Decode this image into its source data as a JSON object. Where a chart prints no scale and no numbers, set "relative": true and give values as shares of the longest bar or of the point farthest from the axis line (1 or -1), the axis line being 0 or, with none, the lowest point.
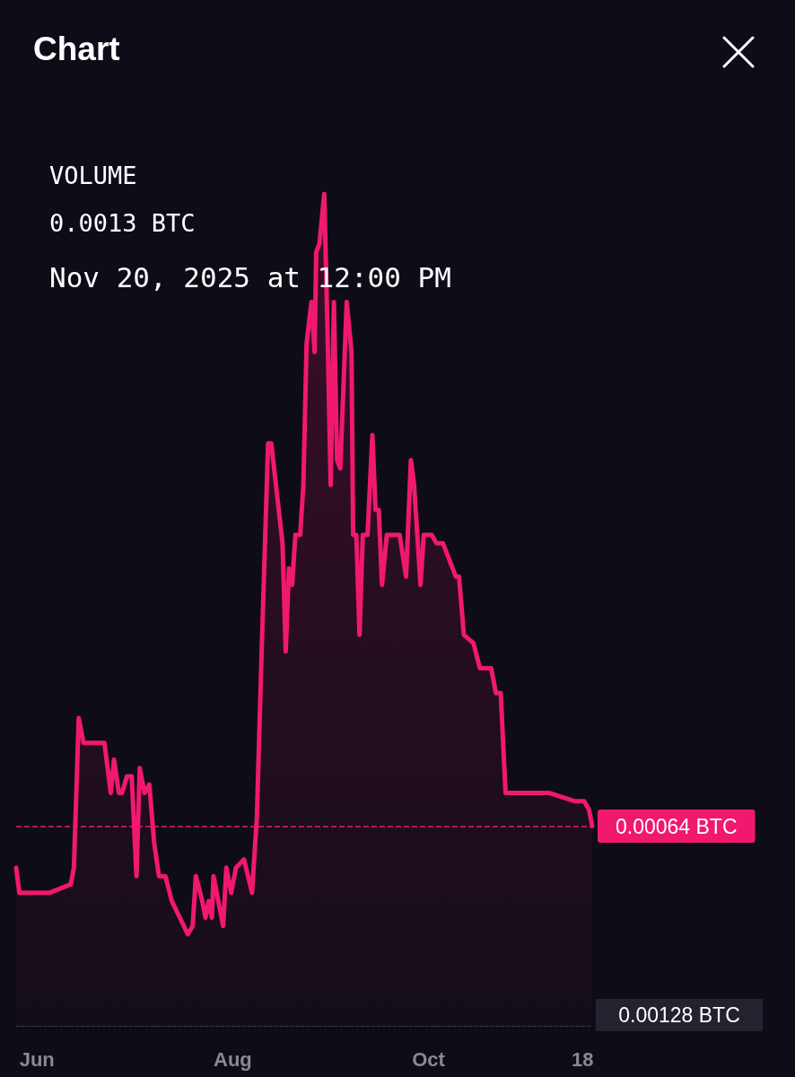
{
  "chart_data": {
    "type": "area",
    "title": "Chart",
    "relative": true,
    "color": "#f0196e",
    "line_style": "solid",
    "marker": "none",
    "grid": false,
    "annotations": [
      "VOLUME",
      "0.0013 BTC",
      "Nov 20, 2025 at 12:00 PM",
      "0.00128 BTC"
    ],
    "xlim": [
      "2025-05-25T12:00",
      "2025-11-21"
    ],
    "xticks": [
      {
        "value": "2025-06-01",
        "label": "Jun"
      },
      {
        "value": "2025-08-01",
        "label": "Aug"
      },
      {
        "value": "2025-10-01",
        "label": "Oct"
      },
      {
        "value": "2025-11-18",
        "label": "18"
      }
    ],
    "ref_lines": [
      {
        "axis": "y",
        "value": 0.24,
        "label": "0.00064 BTC",
        "color": "#f0196e",
        "line_style": "dashed"
      }
    ],
    "x": [
      "2025-05-25T12:00",
      "2025-05-26T12:00",
      "2025-06-05",
      "2025-06-11T12:00",
      "2025-06-12T12:00",
      "2025-06-14",
      "2025-06-15T12:00",
      "2025-06-22",
      "2025-06-24",
      "2025-06-25",
      "2025-06-26T12:00",
      "2025-06-27T12:00",
      "2025-06-29",
      "2025-06-30T12:00",
      "2025-07-02",
      "2025-07-03",
      "2025-07-04T12:00",
      "2025-07-06",
      "2025-07-07T12:00",
      "2025-07-09",
      "2025-07-11",
      "2025-07-13",
      "2025-07-18",
      "2025-07-19T12:00",
      "2025-07-20T12:00",
      "2025-07-22T12:00",
      "2025-07-23T12:00",
      "2025-07-24T12:00",
      "2025-07-25T12:00",
      "2025-07-26",
      "2025-07-29",
      "2025-07-30",
      "2025-07-31T12:00",
      "2025-08-02",
      "2025-08-04T12:00",
      "2025-08-07",
      "2025-08-08T12:00",
      "2025-08-10",
      "2025-08-12",
      "2025-08-13",
      "2025-08-16T12:00",
      "2025-08-17T12:00",
      "2025-08-18T12:00",
      "2025-08-19T12:00",
      "2025-08-20T12:00",
      "2025-08-22",
      "2025-08-23",
      "2025-08-24",
      "2025-08-25T12:00",
      "2025-08-26T12:00",
      "2025-08-27",
      "2025-08-28",
      "2025-08-29T12:00",
      "2025-08-30T12:00",
      "2025-08-31T12:00",
      "2025-09-01T12:00",
      "2025-09-02T12:00",
      "2025-09-03T12:00",
      "2025-09-05T12:00",
      "2025-09-07",
      "2025-09-07T12:00",
      "2025-09-08T12:00",
      "2025-09-09T12:00",
      "2025-09-10T12:00",
      "2025-09-12",
      "2025-09-13T12:00",
      "2025-09-14T12:00",
      "2025-09-15T12:00",
      "2025-09-16T12:00",
      "2025-09-18",
      "2025-09-20",
      "2025-09-22",
      "2025-09-24",
      "2025-09-25T12:00",
      "2025-09-26T12:00",
      "2025-09-28T12:00",
      "2025-09-29T12:00",
      "2025-10-02",
      "2025-10-03T12:00",
      "2025-10-05T12:00",
      "2025-10-09T12:00",
      "2025-10-10T12:00",
      "2025-10-12",
      "2025-10-15",
      "2025-10-17",
      "2025-10-20T12:00",
      "2025-10-22",
      "2025-10-23T12:00",
      "2025-10-25",
      "2025-11-07T12:00",
      "2025-11-15T12:00",
      "2025-11-18T12:00",
      "2025-11-20",
      "2025-11-21"
    ],
    "values": [
      0.19,
      0.16,
      0.16,
      0.17,
      0.19,
      0.37,
      0.34,
      0.34,
      0.28,
      0.32,
      0.28,
      0.28,
      0.3,
      0.3,
      0.18,
      0.31,
      0.28,
      0.29,
      0.22,
      0.18,
      0.18,
      0.15,
      0.11,
      0.12,
      0.18,
      0.15,
      0.13,
      0.15,
      0.13,
      0.18,
      0.12,
      0.19,
      0.16,
      0.19,
      0.2,
      0.16,
      0.25,
      0.45,
      0.7,
      0.7,
      0.58,
      0.45,
      0.55,
      0.53,
      0.59,
      0.59,
      0.65,
      0.82,
      0.87,
      0.81,
      0.93,
      0.94,
      1.0,
      0.84,
      0.65,
      0.87,
      0.68,
      0.67,
      0.87,
      0.81,
      0.59,
      0.59,
      0.47,
      0.59,
      0.59,
      0.71,
      0.62,
      0.62,
      0.53,
      0.59,
      0.59,
      0.59,
      0.54,
      0.68,
      0.65,
      0.53,
      0.59,
      0.59,
      0.58,
      0.58,
      0.54,
      0.54,
      0.47,
      0.46,
      0.43,
      0.43,
      0.4,
      0.4,
      0.28,
      0.28,
      0.27,
      0.27,
      0.26,
      0.24
    ]
  }
}
